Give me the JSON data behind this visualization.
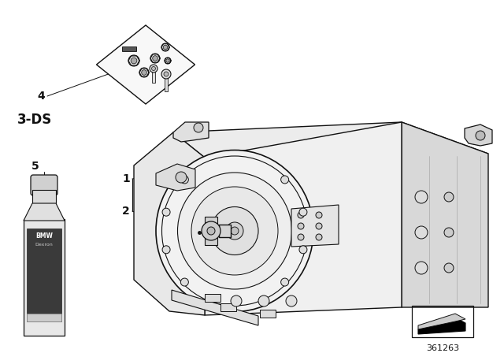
{
  "background_color": "#ffffff",
  "label_3ds": "3-DS",
  "label_4": "4",
  "label_1": "1",
  "label_2": "2",
  "label_5": "5",
  "part_number": "361263",
  "fig_width": 6.4,
  "fig_height": 4.48,
  "dpi": 100,
  "gearbox_color": "#f5f5f5",
  "line_color": "#111111"
}
